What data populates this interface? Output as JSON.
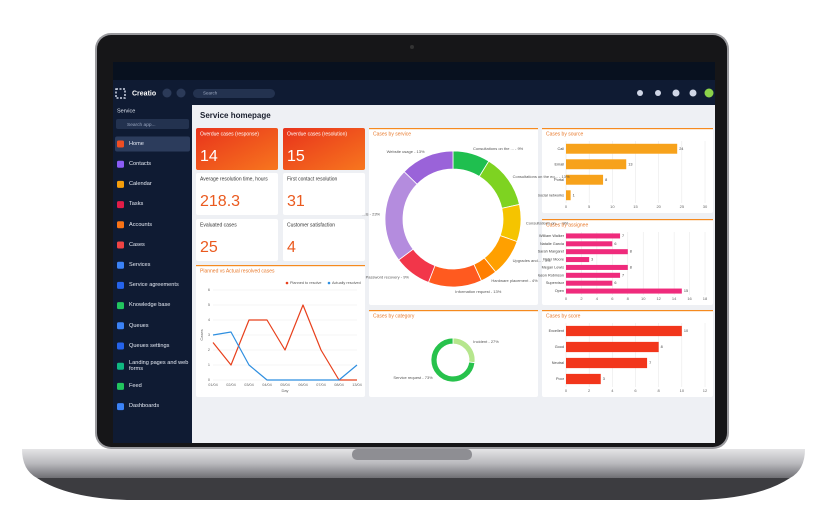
{
  "topbar": {
    "logo": "Creatio",
    "search": "Search"
  },
  "sidebar": {
    "title": "Service",
    "search": "Search app...",
    "items": [
      "Home",
      "Contacts",
      "Calendar",
      "Tasks",
      "Accounts",
      "Cases",
      "Services",
      "Service agreements",
      "Knowledge base",
      "Queues",
      "Queues settings",
      "Landing pages and web forms",
      "Feed",
      "Dashboards"
    ]
  },
  "page": {
    "title": "Service homepage"
  },
  "kpis": [
    {
      "label": "Overdue cases (response)",
      "value": 14
    },
    {
      "label": "Overdue cases (resolution)",
      "value": 15
    },
    {
      "label": "Average resolution time, hours",
      "value": 218.3
    },
    {
      "label": "First contact resolution",
      "value": 31
    },
    {
      "label": "Evaluated cases",
      "value": 25
    },
    {
      "label": "Customer satisfaction",
      "value": 4
    }
  ],
  "planned_vs_actual": {
    "title": "Planned vs Actual resolved cases",
    "x_label": "Day",
    "y_label": "Cases",
    "categories": [
      "01/04",
      "02/04",
      "03/04",
      "04/04",
      "05/04",
      "06/04",
      "07/04",
      "08/04",
      "13/04"
    ],
    "series": [
      {
        "name": "Planned to resolve",
        "color": "#e8401c",
        "values": [
          2.5,
          1,
          4,
          4,
          2,
          5,
          2,
          0,
          0
        ]
      },
      {
        "name": "Actually resolved",
        "color": "#2f8fe0",
        "values": [
          3,
          3.2,
          1,
          0,
          0,
          0,
          0,
          0,
          1
        ]
      }
    ],
    "ylim": [
      0,
      6
    ],
    "yticks": [
      0,
      1,
      2,
      3,
      4,
      5,
      6
    ]
  },
  "cases_by_service": {
    "title": "Cases by service",
    "segments": [
      {
        "label": "Consultations on the ... - 9%",
        "value": 9,
        "color": "#1fbf4f"
      },
      {
        "label": "Consultations on the eq... - 13%",
        "value": 13,
        "color": "#7ed321"
      },
      {
        "label": "Consultations on... - 9%",
        "value": 9,
        "color": "#f5c400"
      },
      {
        "label": "Upgrades and... - 9%",
        "value": 9,
        "color": "#ffa000"
      },
      {
        "label": "Hardware placement - 4%",
        "value": 4,
        "color": "#ff7f00"
      },
      {
        "label": "Information request - 13%",
        "value": 13,
        "color": "#ff5a1f"
      },
      {
        "label": "Password recovery - 9%",
        "value": 9,
        "color": "#f2364a"
      },
      {
        "label": "...ls - 23%",
        "value": 23,
        "color": "#b48cde"
      },
      {
        "label": "Website usage - 13%",
        "value": 13,
        "color": "#9a63d9"
      }
    ]
  },
  "cases_by_category": {
    "title": "Cases by category",
    "segments": [
      {
        "label": "Incident - 27%",
        "value": 27,
        "color": "#b6e68d"
      },
      {
        "label": "Service request - 73%",
        "value": 73,
        "color": "#27c24c"
      }
    ]
  },
  "cases_by_source": {
    "title": "Cases by source",
    "categories": [
      "Call",
      "Email",
      "Portal",
      "Social networks"
    ],
    "values": [
      24,
      13,
      8,
      1
    ],
    "color": "#f7a21b",
    "xlim": [
      0,
      30
    ],
    "xticks": [
      0,
      5,
      10,
      15,
      20,
      25,
      30
    ]
  },
  "cases_by_assignee": {
    "title": "Cases by assignee",
    "categories": [
      "William Walker",
      "Natalie Garcia",
      "Sarah Margaret",
      "Peter Moore",
      "Megan Lewis",
      "Jason Robinson",
      "Supervisor",
      "Open"
    ],
    "values": [
      7,
      6,
      8,
      3,
      8,
      7,
      6,
      15
    ],
    "color": "#ef2b7c",
    "xlim": [
      0,
      18
    ],
    "xticks": [
      0,
      2,
      4,
      6,
      8,
      10,
      12,
      14,
      16,
      18
    ]
  },
  "cases_by_score": {
    "title": "Cases by score",
    "categories": [
      "Excellent",
      "Good",
      "Neutral",
      "Poor"
    ],
    "values": [
      10,
      8,
      7,
      3
    ],
    "color": "#f2361c",
    "xlim": [
      0,
      12
    ],
    "xticks": [
      0,
      2,
      4,
      6,
      8,
      10,
      12
    ]
  }
}
